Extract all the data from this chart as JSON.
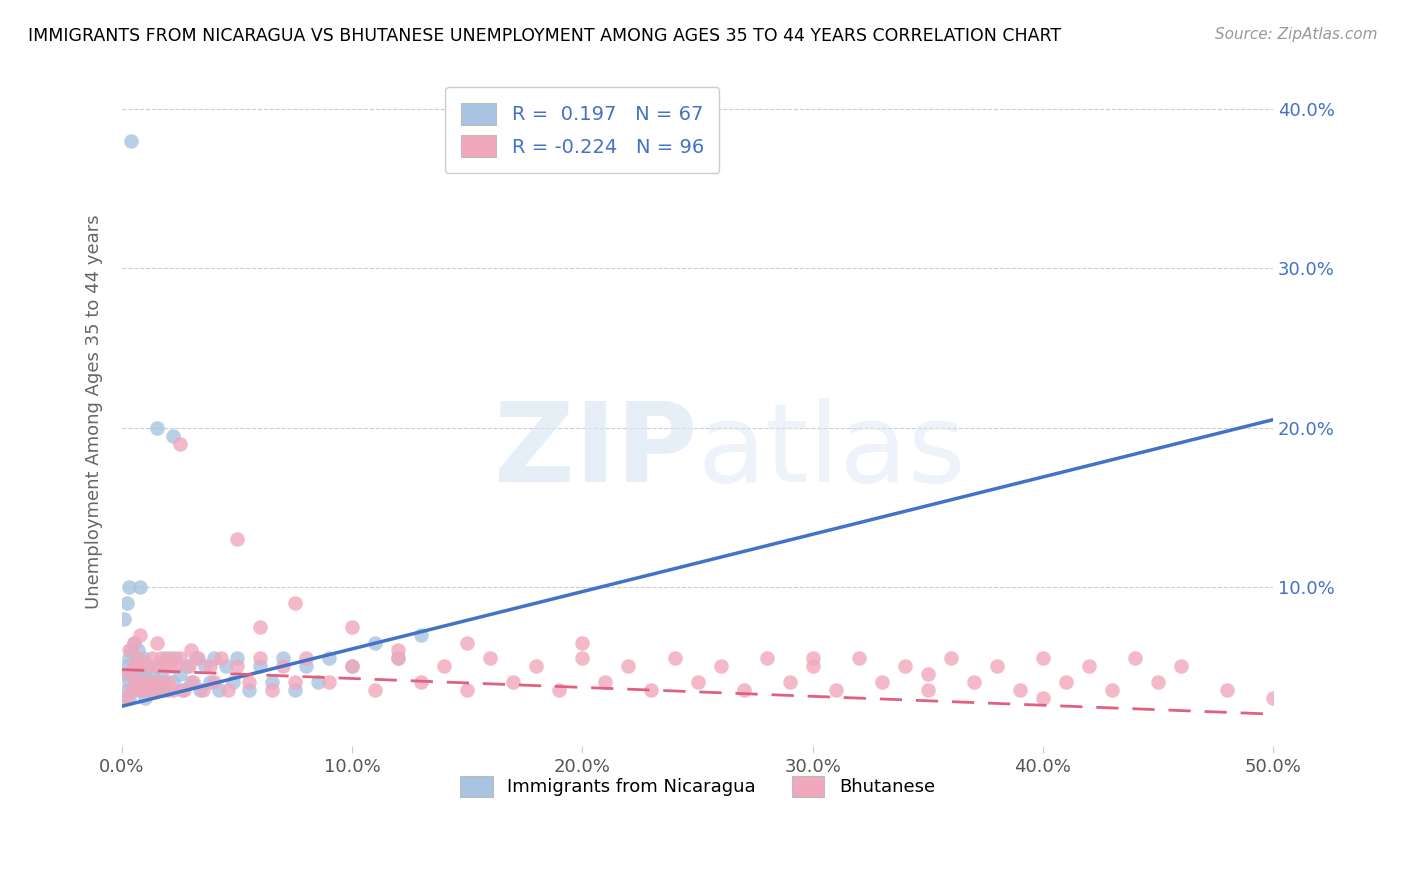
{
  "title": "IMMIGRANTS FROM NICARAGUA VS BHUTANESE UNEMPLOYMENT AMONG AGES 35 TO 44 YEARS CORRELATION CHART",
  "source": "Source: ZipAtlas.com",
  "ylabel": "Unemployment Among Ages 35 to 44 years",
  "xlim": [
    0,
    0.5
  ],
  "ylim": [
    0,
    0.42
  ],
  "xticks": [
    0.0,
    0.1,
    0.2,
    0.3,
    0.4,
    0.5
  ],
  "yticks": [
    0.0,
    0.1,
    0.2,
    0.3,
    0.4
  ],
  "xticklabels": [
    "0.0%",
    "10.0%",
    "20.0%",
    "30.0%",
    "40.0%",
    "50.0%"
  ],
  "yticklabels_right": [
    "",
    "10.0%",
    "20.0%",
    "30.0%",
    "40.0%"
  ],
  "blue_R": 0.197,
  "blue_N": 67,
  "pink_R": -0.224,
  "pink_N": 96,
  "blue_color": "#a8c4e0",
  "pink_color": "#f0a8bc",
  "blue_line_color": "#4472c4",
  "pink_line_color": "#e06080",
  "legend_label_blue": "Immigrants from Nicaragua",
  "legend_label_pink": "Bhutanese",
  "blue_line_x": [
    0.0,
    0.5
  ],
  "blue_line_y": [
    0.025,
    0.205
  ],
  "pink_line_x": [
    0.0,
    0.5
  ],
  "pink_line_y": [
    0.048,
    0.02
  ],
  "blue_scatter_x": [
    0.001,
    0.001,
    0.002,
    0.002,
    0.003,
    0.003,
    0.003,
    0.004,
    0.004,
    0.005,
    0.005,
    0.005,
    0.006,
    0.006,
    0.007,
    0.007,
    0.008,
    0.008,
    0.009,
    0.009,
    0.01,
    0.01,
    0.011,
    0.012,
    0.013,
    0.014,
    0.015,
    0.016,
    0.017,
    0.018,
    0.019,
    0.02,
    0.021,
    0.022,
    0.023,
    0.025,
    0.026,
    0.028,
    0.03,
    0.032,
    0.034,
    0.036,
    0.038,
    0.04,
    0.042,
    0.045,
    0.048,
    0.05,
    0.055,
    0.06,
    0.065,
    0.07,
    0.075,
    0.08,
    0.085,
    0.09,
    0.1,
    0.11,
    0.12,
    0.13,
    0.022,
    0.015,
    0.008,
    0.004,
    0.003,
    0.002,
    0.001
  ],
  "blue_scatter_y": [
    0.03,
    0.045,
    0.035,
    0.05,
    0.04,
    0.055,
    0.03,
    0.045,
    0.06,
    0.035,
    0.05,
    0.065,
    0.04,
    0.055,
    0.045,
    0.06,
    0.035,
    0.05,
    0.04,
    0.055,
    0.03,
    0.045,
    0.05,
    0.035,
    0.045,
    0.04,
    0.05,
    0.035,
    0.045,
    0.04,
    0.055,
    0.035,
    0.05,
    0.04,
    0.055,
    0.045,
    0.035,
    0.05,
    0.04,
    0.055,
    0.035,
    0.05,
    0.04,
    0.055,
    0.035,
    0.05,
    0.04,
    0.055,
    0.035,
    0.05,
    0.04,
    0.055,
    0.035,
    0.05,
    0.04,
    0.055,
    0.05,
    0.065,
    0.055,
    0.07,
    0.195,
    0.2,
    0.1,
    0.38,
    0.1,
    0.09,
    0.08
  ],
  "pink_scatter_x": [
    0.002,
    0.003,
    0.004,
    0.005,
    0.005,
    0.006,
    0.007,
    0.008,
    0.008,
    0.009,
    0.01,
    0.011,
    0.012,
    0.013,
    0.014,
    0.015,
    0.016,
    0.017,
    0.018,
    0.019,
    0.02,
    0.021,
    0.022,
    0.023,
    0.025,
    0.027,
    0.029,
    0.031,
    0.033,
    0.035,
    0.038,
    0.04,
    0.043,
    0.046,
    0.05,
    0.055,
    0.06,
    0.065,
    0.07,
    0.075,
    0.08,
    0.09,
    0.1,
    0.11,
    0.12,
    0.13,
    0.14,
    0.15,
    0.16,
    0.17,
    0.18,
    0.19,
    0.2,
    0.21,
    0.22,
    0.23,
    0.24,
    0.25,
    0.26,
    0.27,
    0.28,
    0.29,
    0.3,
    0.31,
    0.32,
    0.33,
    0.34,
    0.35,
    0.36,
    0.37,
    0.38,
    0.39,
    0.4,
    0.41,
    0.42,
    0.43,
    0.44,
    0.45,
    0.46,
    0.48,
    0.5,
    0.025,
    0.05,
    0.075,
    0.1,
    0.15,
    0.2,
    0.3,
    0.35,
    0.4,
    0.003,
    0.008,
    0.015,
    0.03,
    0.06,
    0.12
  ],
  "pink_scatter_y": [
    0.03,
    0.045,
    0.035,
    0.05,
    0.065,
    0.04,
    0.055,
    0.035,
    0.05,
    0.04,
    0.035,
    0.05,
    0.04,
    0.055,
    0.035,
    0.05,
    0.04,
    0.055,
    0.035,
    0.05,
    0.04,
    0.055,
    0.035,
    0.05,
    0.055,
    0.035,
    0.05,
    0.04,
    0.055,
    0.035,
    0.05,
    0.04,
    0.055,
    0.035,
    0.05,
    0.04,
    0.055,
    0.035,
    0.05,
    0.04,
    0.055,
    0.04,
    0.05,
    0.035,
    0.055,
    0.04,
    0.05,
    0.035,
    0.055,
    0.04,
    0.05,
    0.035,
    0.055,
    0.04,
    0.05,
    0.035,
    0.055,
    0.04,
    0.05,
    0.035,
    0.055,
    0.04,
    0.05,
    0.035,
    0.055,
    0.04,
    0.05,
    0.035,
    0.055,
    0.04,
    0.05,
    0.035,
    0.055,
    0.04,
    0.05,
    0.035,
    0.055,
    0.04,
    0.05,
    0.035,
    0.03,
    0.19,
    0.13,
    0.09,
    0.075,
    0.065,
    0.065,
    0.055,
    0.045,
    0.03,
    0.06,
    0.07,
    0.065,
    0.06,
    0.075,
    0.06
  ]
}
